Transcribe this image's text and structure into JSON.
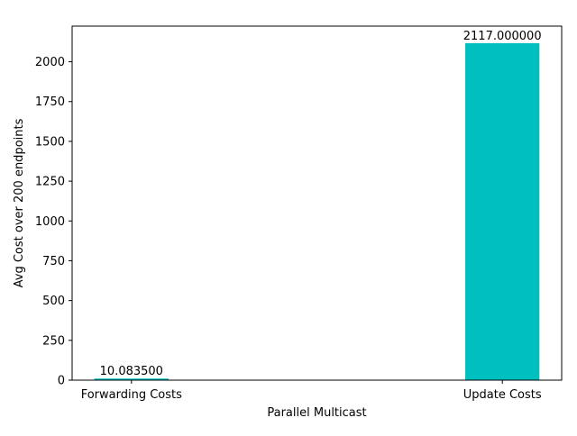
{
  "chart_data": {
    "type": "bar",
    "title": "",
    "xlabel": "Parallel Multicast",
    "ylabel": "Avg Cost over 200 endpoints",
    "categories": [
      "Forwarding Costs",
      "Update Costs"
    ],
    "values": [
      10.0835,
      2117.0
    ],
    "value_labels": [
      "10.083500",
      "2117.000000"
    ],
    "ylim": [
      0,
      2223.9
    ],
    "yticks": [
      0,
      250,
      500,
      750,
      1000,
      1250,
      1500,
      1750,
      2000
    ],
    "grid": false,
    "legend": "none",
    "bar_color": "#00bfbf"
  }
}
